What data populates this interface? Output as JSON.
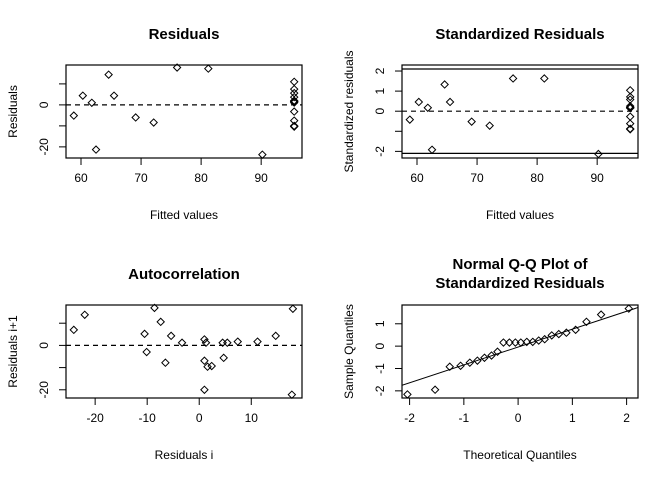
{
  "chart_data": [
    {
      "type": "scatter",
      "id": "residuals",
      "title": [
        "Residuals"
      ],
      "xlabel": "Fitted values",
      "ylabel": "Residuals",
      "xlim": [
        57.5,
        96.8
      ],
      "ylim": [
        -25.3,
        19
      ],
      "xticks": [
        {
          "v": 60,
          "label": "60"
        },
        {
          "v": 70,
          "label": "70"
        },
        {
          "v": 80,
          "label": "80"
        },
        {
          "v": 90,
          "label": "90"
        }
      ],
      "yticks": [
        {
          "v": -20,
          "label": "-20"
        },
        {
          "v": -10,
          "label": ""
        },
        {
          "v": 0,
          "label": "0"
        },
        {
          "v": 10,
          "label": ""
        }
      ],
      "hlines": [
        {
          "y": 0,
          "style": "dashed"
        }
      ],
      "points": [
        [
          58.8,
          -5.1
        ],
        [
          60.3,
          4.4
        ],
        [
          61.8,
          1.0
        ],
        [
          62.5,
          -21.3
        ],
        [
          64.6,
          14.4
        ],
        [
          65.5,
          4.4
        ],
        [
          69.1,
          -6.0
        ],
        [
          72.1,
          -8.4
        ],
        [
          76.0,
          17.8
        ],
        [
          81.2,
          17.3
        ],
        [
          90.2,
          -23.7
        ],
        [
          95.5,
          11.0
        ],
        [
          95.5,
          7.5
        ],
        [
          95.5,
          5.6
        ],
        [
          95.5,
          3.7
        ],
        [
          95.5,
          2.0
        ],
        [
          95.5,
          1.6
        ],
        [
          95.5,
          1.6
        ],
        [
          95.5,
          1.1
        ],
        [
          95.5,
          -3.2
        ],
        [
          95.5,
          -7.5
        ],
        [
          95.5,
          -10.0
        ],
        [
          95.5,
          -10.3
        ],
        [
          95.5,
          -10.3
        ]
      ]
    },
    {
      "type": "scatter",
      "id": "standardized-residuals",
      "title": [
        "Standardized Residuals"
      ],
      "xlabel": "Fitted values",
      "ylabel": "Standardized residuals",
      "xlim": [
        57.5,
        96.8
      ],
      "ylim": [
        -2.33,
        2.3
      ],
      "xticks": [
        {
          "v": 60,
          "label": "60"
        },
        {
          "v": 70,
          "label": "70"
        },
        {
          "v": 80,
          "label": "80"
        },
        {
          "v": 90,
          "label": "90"
        }
      ],
      "yticks": [
        {
          "v": -2,
          "label": "-2"
        },
        {
          "v": -1,
          "label": ""
        },
        {
          "v": 0,
          "label": "0"
        },
        {
          "v": 1,
          "label": "1"
        },
        {
          "v": 2,
          "label": "2"
        }
      ],
      "hlines": [
        {
          "y": 0,
          "style": "dashed"
        },
        {
          "y": 2.1,
          "style": "solid"
        },
        {
          "y": -2.1,
          "style": "solid"
        }
      ],
      "points": [
        [
          58.8,
          -0.42
        ],
        [
          60.3,
          0.46
        ],
        [
          61.8,
          0.17
        ],
        [
          62.5,
          -1.92
        ],
        [
          64.6,
          1.33
        ],
        [
          65.5,
          0.46
        ],
        [
          69.1,
          -0.52
        ],
        [
          72.1,
          -0.72
        ],
        [
          76.0,
          1.63
        ],
        [
          81.2,
          1.63
        ],
        [
          90.2,
          -2.13
        ],
        [
          95.5,
          1.04
        ],
        [
          95.5,
          0.71
        ],
        [
          95.5,
          0.58
        ],
        [
          95.5,
          0.25
        ],
        [
          95.5,
          0.19
        ],
        [
          95.5,
          0.17
        ],
        [
          95.5,
          0.16
        ],
        [
          95.5,
          0.16
        ],
        [
          95.5,
          -0.27
        ],
        [
          95.5,
          -0.62
        ],
        [
          95.5,
          -0.88
        ],
        [
          95.5,
          -0.88
        ],
        [
          95.5,
          -0.9
        ]
      ]
    },
    {
      "type": "scatter",
      "id": "autocorrelation",
      "title": [
        "Autocorrelation"
      ],
      "xlabel": "Residuals i",
      "ylabel": "Residuals i+1",
      "xlim": [
        -25.6,
        19.75
      ],
      "ylim": [
        -23.7,
        18.2
      ],
      "xticks": [
        {
          "v": -20,
          "label": "-20"
        },
        {
          "v": -10,
          "label": "-10"
        },
        {
          "v": 0,
          "label": "0"
        },
        {
          "v": 10,
          "label": "10"
        }
      ],
      "yticks": [
        {
          "v": -20,
          "label": "-20"
        },
        {
          "v": -10,
          "label": ""
        },
        {
          "v": 0,
          "label": "0"
        },
        {
          "v": 10,
          "label": ""
        }
      ],
      "hlines": [
        {
          "y": 0,
          "style": "dashed"
        }
      ],
      "points": [
        [
          -24.1,
          7.0
        ],
        [
          -22.0,
          13.8
        ],
        [
          -10.5,
          5.2
        ],
        [
          -10.1,
          -3.0
        ],
        [
          -8.6,
          16.9
        ],
        [
          -7.4,
          10.6
        ],
        [
          -6.5,
          -7.8
        ],
        [
          -5.4,
          4.3
        ],
        [
          -3.3,
          1.2
        ],
        [
          1.0,
          2.7
        ],
        [
          1.3,
          1.2
        ],
        [
          1.0,
          -6.9
        ],
        [
          1.6,
          -9.6
        ],
        [
          2.4,
          -9.3
        ],
        [
          1.0,
          -20.0
        ],
        [
          4.5,
          1.2
        ],
        [
          4.7,
          -5.6
        ],
        [
          5.4,
          1.2
        ],
        [
          7.4,
          1.7
        ],
        [
          11.2,
          1.7
        ],
        [
          14.7,
          4.3
        ],
        [
          18.0,
          16.5
        ],
        [
          17.8,
          -22.2
        ]
      ]
    },
    {
      "type": "scatter",
      "id": "normal-qq",
      "title": [
        "Normal Q-Q Plot of",
        "Standardized Residuals"
      ],
      "xlabel": "Theoretical Quantiles",
      "ylabel": "Sample Quantiles",
      "xlim": [
        -2.14,
        2.21
      ],
      "ylim": [
        -2.32,
        1.84
      ],
      "xticks": [
        {
          "v": -2,
          "label": "-2"
        },
        {
          "v": -1,
          "label": "-1"
        },
        {
          "v": 0,
          "label": "0"
        },
        {
          "v": 1,
          "label": "1"
        },
        {
          "v": 2,
          "label": "2"
        }
      ],
      "yticks": [
        {
          "v": -2,
          "label": "-2"
        },
        {
          "v": -1,
          "label": "-1"
        },
        {
          "v": 0,
          "label": "0"
        },
        {
          "v": 1,
          "label": "1"
        }
      ],
      "hlines": [],
      "abline": {
        "intercept": -0.04,
        "slope": 0.8
      },
      "points": [
        [
          -2.04,
          -2.16
        ],
        [
          -1.53,
          -1.95
        ],
        [
          -1.26,
          -0.92
        ],
        [
          -1.06,
          -0.88
        ],
        [
          -0.89,
          -0.74
        ],
        [
          -0.75,
          -0.65
        ],
        [
          -0.62,
          -0.52
        ],
        [
          -0.49,
          -0.42
        ],
        [
          -0.38,
          -0.25
        ],
        [
          -0.27,
          0.16
        ],
        [
          -0.16,
          0.16
        ],
        [
          -0.05,
          0.16
        ],
        [
          0.05,
          0.16
        ],
        [
          0.16,
          0.19
        ],
        [
          0.27,
          0.19
        ],
        [
          0.38,
          0.25
        ],
        [
          0.49,
          0.31
        ],
        [
          0.62,
          0.48
        ],
        [
          0.75,
          0.54
        ],
        [
          0.89,
          0.6
        ],
        [
          1.06,
          0.73
        ],
        [
          1.26,
          1.09
        ],
        [
          1.53,
          1.41
        ],
        [
          2.04,
          1.68
        ]
      ]
    }
  ]
}
